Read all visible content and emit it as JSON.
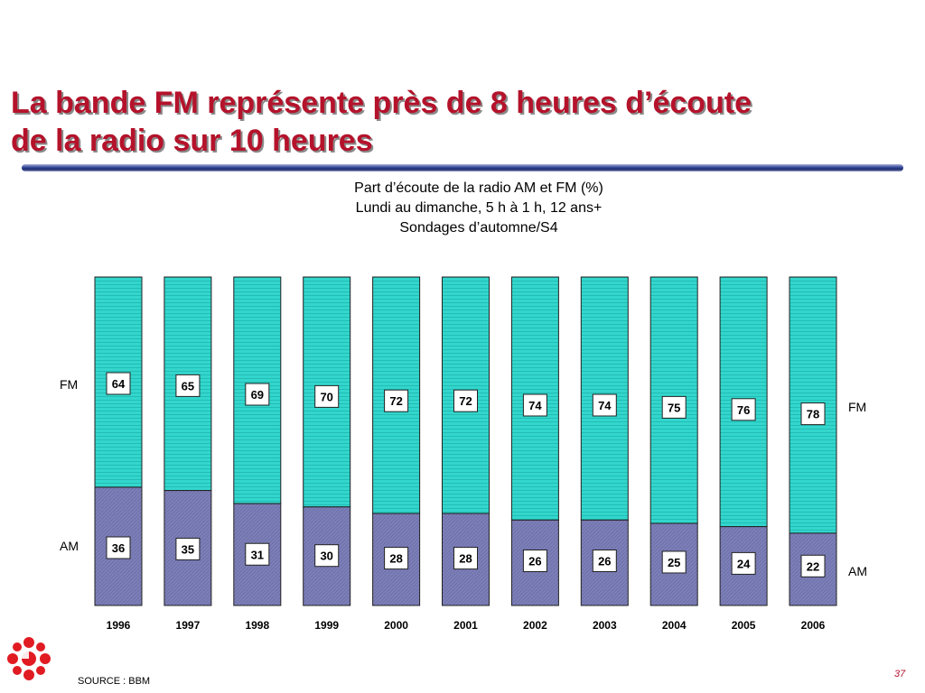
{
  "slide": {
    "title_line1": "La bande FM représente près de 8 heures d’écoute",
    "title_line2": "de la radio sur 10 heures",
    "source": "SOURCE : BBM",
    "page_number": "37"
  },
  "colors": {
    "title": "#b5122b",
    "fm": "#33d6cc",
    "am": "#7d7fb8",
    "rule": "#1d2a6b"
  },
  "icons": {
    "logo": "cbc-radio-canada-gem-logo"
  },
  "chart_data": {
    "type": "bar",
    "stacked": true,
    "percent_stacked": true,
    "title_lines": [
      "Part d’écoute de la radio AM et FM (%)",
      "Lundi au dimanche, 5 h à 1 h, 12 ans+",
      "Sondages d’automne/S4"
    ],
    "categories": [
      "1996",
      "1997",
      "1998",
      "1999",
      "2000",
      "2001",
      "2002",
      "2003",
      "2004",
      "2005",
      "2006"
    ],
    "series": [
      {
        "name": "AM",
        "values": [
          36,
          35,
          31,
          30,
          28,
          28,
          26,
          26,
          25,
          24,
          22
        ]
      },
      {
        "name": "FM",
        "values": [
          64,
          65,
          69,
          70,
          72,
          72,
          74,
          74,
          75,
          76,
          78
        ]
      }
    ],
    "ylim": [
      0,
      100
    ],
    "grid": false,
    "legend": "left and right side labels",
    "side_labels": {
      "left": {
        "fm": "FM",
        "am": "AM"
      },
      "right": {
        "fm": "FM",
        "am": "AM"
      }
    }
  }
}
